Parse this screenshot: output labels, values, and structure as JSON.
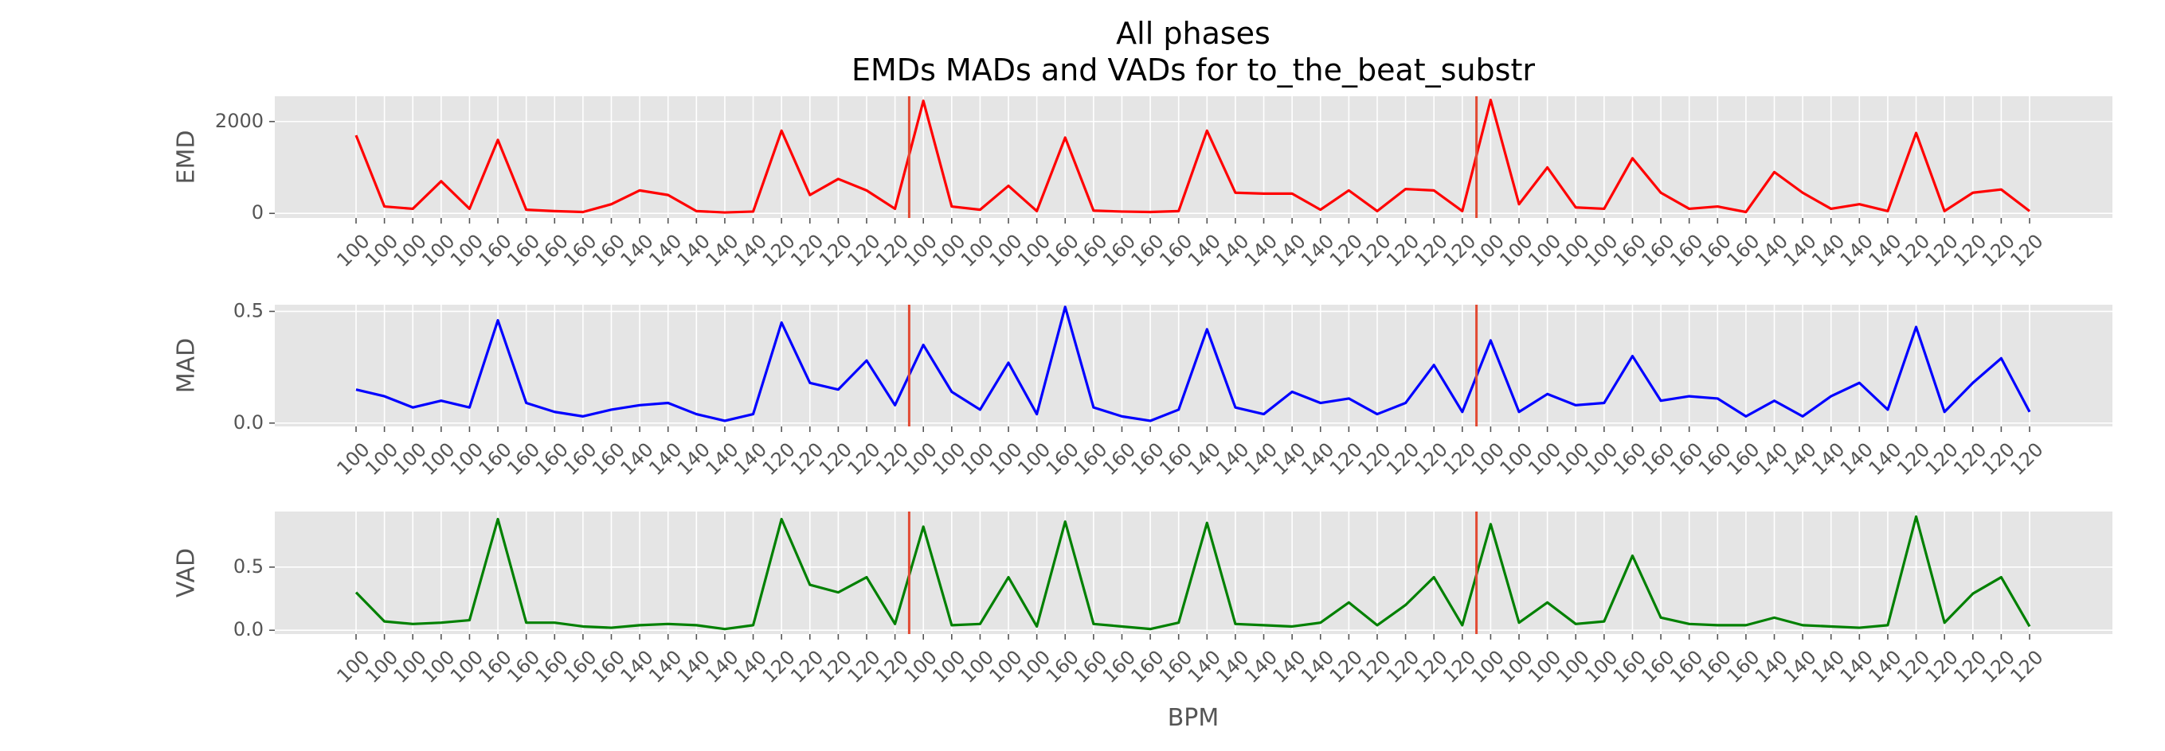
{
  "suptitle": [
    "All phases",
    "EMDs MADs and VADs for to_the_beat_substr"
  ],
  "chart_data": [
    {
      "type": "line",
      "ylabel": "EMD",
      "color": "#ff0000",
      "vline_color": "#e24a33",
      "vlines": [
        19.5,
        39.5
      ],
      "categories": [
        "100",
        "100",
        "100",
        "100",
        "100",
        "160",
        "160",
        "160",
        "160",
        "160",
        "140",
        "140",
        "140",
        "140",
        "140",
        "120",
        "120",
        "120",
        "120",
        "120",
        "100",
        "100",
        "100",
        "100",
        "100",
        "160",
        "160",
        "160",
        "160",
        "160",
        "140",
        "140",
        "140",
        "140",
        "140",
        "120",
        "120",
        "120",
        "120",
        "120",
        "100",
        "100",
        "100",
        "100",
        "100",
        "160",
        "160",
        "160",
        "160",
        "160",
        "140",
        "140",
        "140",
        "140",
        "140",
        "120",
        "120",
        "120",
        "120",
        "120"
      ],
      "values": [
        1700,
        150,
        100,
        700,
        100,
        1600,
        80,
        50,
        30,
        200,
        500,
        400,
        50,
        20,
        40,
        1800,
        400,
        750,
        500,
        100,
        2450,
        150,
        80,
        600,
        50,
        1650,
        60,
        40,
        30,
        50,
        1800,
        450,
        430,
        430,
        80,
        500,
        50,
        530,
        500,
        50,
        2470,
        200,
        1000,
        130,
        100,
        1200,
        450,
        100,
        150,
        30,
        900,
        450,
        100,
        200,
        50,
        1750,
        50,
        450,
        520,
        50
      ],
      "ylim": [
        -100,
        2550
      ],
      "yticks": [
        0,
        2000
      ],
      "grid": true
    },
    {
      "type": "line",
      "ylabel": "MAD",
      "color": "#0000ff",
      "vline_color": "#e24a33",
      "vlines": [
        19.5,
        39.5
      ],
      "categories": [
        "100",
        "100",
        "100",
        "100",
        "100",
        "160",
        "160",
        "160",
        "160",
        "160",
        "140",
        "140",
        "140",
        "140",
        "140",
        "120",
        "120",
        "120",
        "120",
        "120",
        "100",
        "100",
        "100",
        "100",
        "100",
        "160",
        "160",
        "160",
        "160",
        "160",
        "140",
        "140",
        "140",
        "140",
        "140",
        "120",
        "120",
        "120",
        "120",
        "120",
        "100",
        "100",
        "100",
        "100",
        "100",
        "160",
        "160",
        "160",
        "160",
        "160",
        "140",
        "140",
        "140",
        "140",
        "140",
        "120",
        "120",
        "120",
        "120",
        "120"
      ],
      "values": [
        0.15,
        0.12,
        0.07,
        0.1,
        0.07,
        0.46,
        0.09,
        0.05,
        0.03,
        0.06,
        0.08,
        0.09,
        0.04,
        0.01,
        0.04,
        0.45,
        0.18,
        0.15,
        0.28,
        0.08,
        0.35,
        0.14,
        0.06,
        0.27,
        0.04,
        0.52,
        0.07,
        0.03,
        0.01,
        0.06,
        0.42,
        0.07,
        0.04,
        0.14,
        0.09,
        0.11,
        0.04,
        0.09,
        0.26,
        0.05,
        0.37,
        0.05,
        0.13,
        0.08,
        0.09,
        0.3,
        0.1,
        0.12,
        0.11,
        0.03,
        0.1,
        0.03,
        0.12,
        0.18,
        0.06,
        0.43,
        0.05,
        0.18,
        0.29,
        0.05
      ],
      "ylim": [
        -0.015,
        0.53
      ],
      "yticks": [
        {
          "value": 0,
          "label": "0.0"
        },
        0.5
      ],
      "grid": true
    },
    {
      "type": "line",
      "ylabel": "VAD",
      "xlabel": "BPM",
      "color": "#008000",
      "vline_color": "#e24a33",
      "vlines": [
        19.5,
        39.5
      ],
      "categories": [
        "100",
        "100",
        "100",
        "100",
        "100",
        "160",
        "160",
        "160",
        "160",
        "160",
        "140",
        "140",
        "140",
        "140",
        "140",
        "120",
        "120",
        "120",
        "120",
        "120",
        "100",
        "100",
        "100",
        "100",
        "100",
        "160",
        "160",
        "160",
        "160",
        "160",
        "140",
        "140",
        "140",
        "140",
        "140",
        "120",
        "120",
        "120",
        "120",
        "120",
        "100",
        "100",
        "100",
        "100",
        "100",
        "160",
        "160",
        "160",
        "160",
        "160",
        "140",
        "140",
        "140",
        "140",
        "140",
        "120",
        "120",
        "120",
        "120",
        "120"
      ],
      "values": [
        0.3,
        0.07,
        0.05,
        0.06,
        0.08,
        0.88,
        0.06,
        0.06,
        0.03,
        0.02,
        0.04,
        0.05,
        0.04,
        0.01,
        0.04,
        0.88,
        0.36,
        0.3,
        0.42,
        0.05,
        0.82,
        0.04,
        0.05,
        0.42,
        0.03,
        0.86,
        0.05,
        0.03,
        0.01,
        0.06,
        0.85,
        0.05,
        0.04,
        0.03,
        0.06,
        0.22,
        0.04,
        0.2,
        0.42,
        0.04,
        0.84,
        0.06,
        0.22,
        0.05,
        0.07,
        0.59,
        0.1,
        0.05,
        0.04,
        0.04,
        0.1,
        0.04,
        0.03,
        0.02,
        0.04,
        0.9,
        0.06,
        0.29,
        0.42,
        0.03
      ],
      "ylim": [
        -0.03,
        0.94
      ],
      "yticks": [
        {
          "value": 0,
          "label": "0.0"
        },
        0.5
      ],
      "grid": true
    }
  ]
}
